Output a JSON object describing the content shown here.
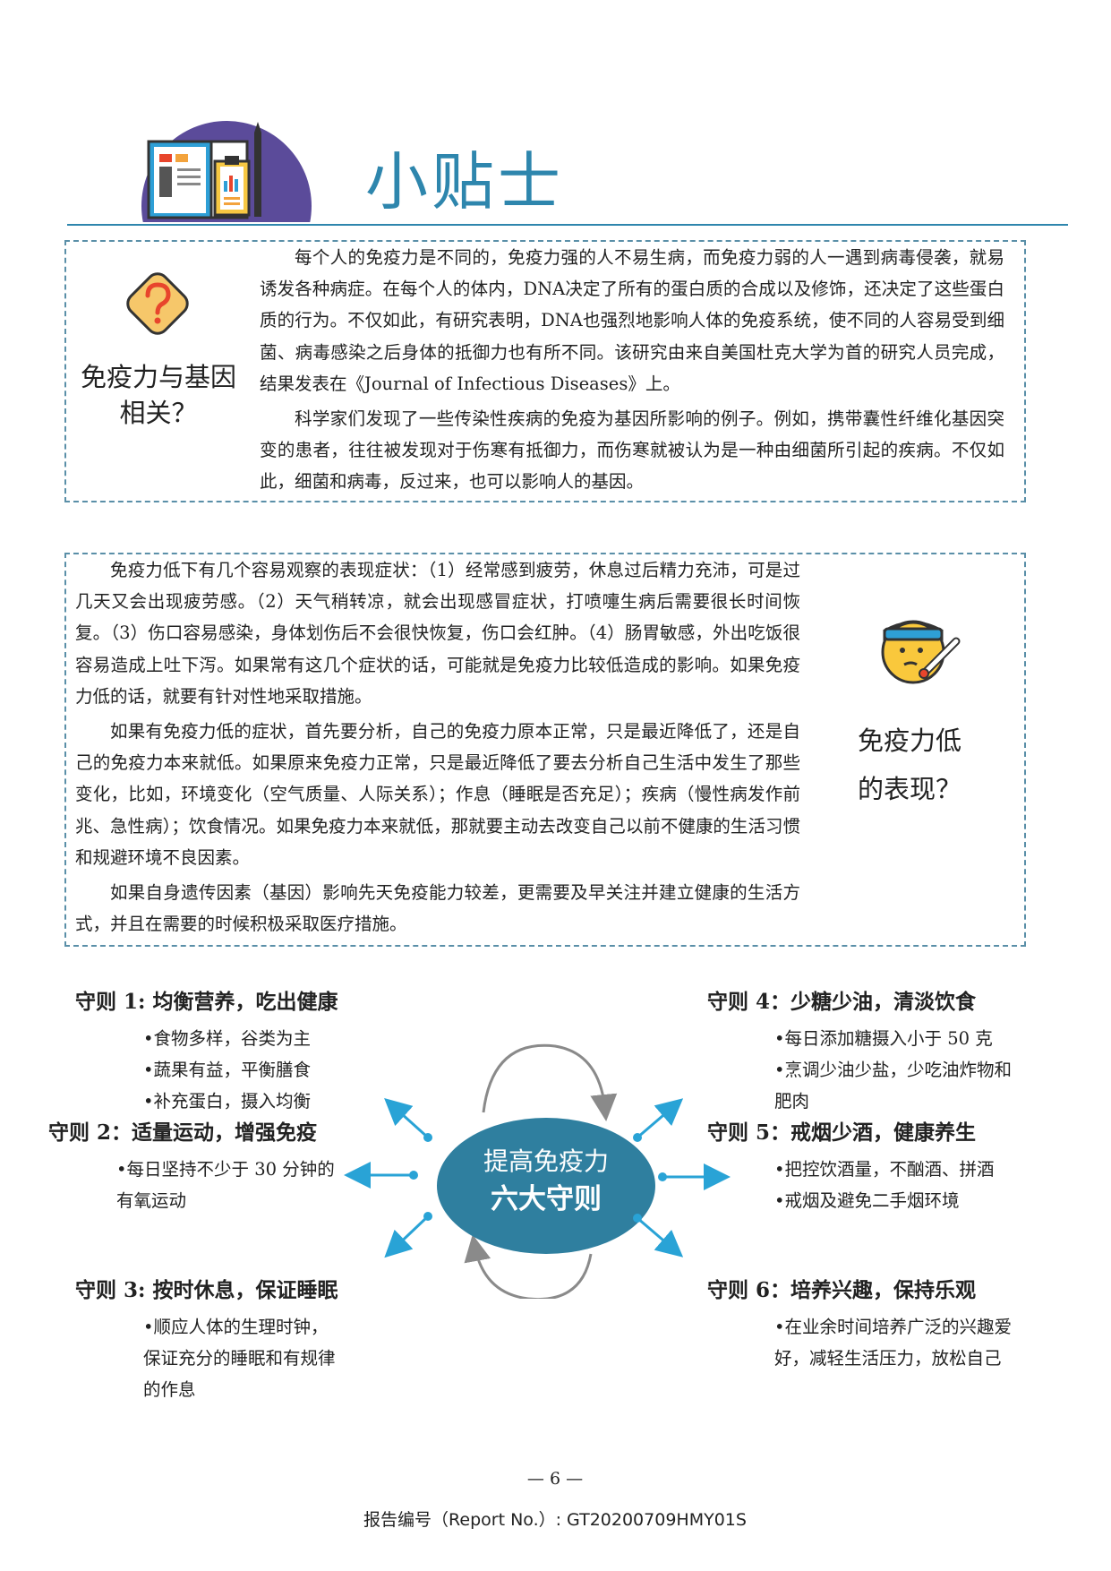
{
  "header": {
    "title": "小贴士"
  },
  "box1": {
    "side_title": "免疫力与基因相关？",
    "paragraphs": [
      "每个人的免疫力是不同的，免疫力强的人不易生病，而免疫力弱的人一遇到病毒侵袭，就易诱发各种病症。在每个人的体内，DNA决定了所有的蛋白质的合成以及修饰，还决定了这些蛋白质的行为。不仅如此，有研究表明，DNA也强烈地影响人体的免疫系统，使不同的人容易受到细菌、病毒感染之后身体的抵御力也有所不同。该研究由来自美国杜克大学为首的研究人员完成，结果发表在《Journal of Infectious Diseases》上。",
      "科学家们发现了一些传染性疾病的免疫为基因所影响的例子。例如，携带囊性纤维化基因突变的患者，往往被发现对于伤寒有抵御力，而伤寒就被认为是一种由细菌所引起的疾病。不仅如此，细菌和病毒，反过来，也可以影响人的基因。"
    ]
  },
  "box2": {
    "side_title_line1": "免疫力低",
    "side_title_line2": "的表现？",
    "paragraphs": [
      "免疫力低下有几个容易观察的表现症状：（1）经常感到疲劳，休息过后精力充沛，可是过几天又会出现疲劳感。（2）天气稍转凉，就会出现感冒症状，打喷嚏生病后需要很长时间恢复。（3）伤口容易感染，身体划伤后不会很快恢复，伤口会红肿。（4）肠胃敏感，外出吃饭很容易造成上吐下泻。如果常有这几个症状的话，可能就是免疫力比较低造成的影响。如果免疫力低的话，就要有针对性地采取措施。",
      "如果有免疫力低的症状，首先要分析，自己的免疫力原本正常，只是最近降低了，还是自己的免疫力本来就低。如果原来免疫力正常，只是最近降低了要去分析自己生活中发生了那些变化，比如，环境变化（空气质量、人际关系）；作息（睡眠是否充足）；疾病（慢性病发作前兆、急性病）；饮食情况。如果免疫力本来就低，那就要主动去改变自己以前不健康的生活习惯和规避环境不良因素。",
      "如果自身遗传因素（基因）影响先天免疫能力较差，更需要及早关注并建立健康的生活方式，并且在需要的时候积极采取医疗措施。"
    ]
  },
  "center": {
    "line1": "提高免疫力",
    "line2": "六大守则"
  },
  "rules": {
    "r1": {
      "title": "守则 1: 均衡营养，吃出健康",
      "items": [
        "•食物多样，谷类为主",
        "•蔬果有益，平衡膳食",
        "•补充蛋白，摄入均衡"
      ]
    },
    "r2": {
      "title": "守则 2：适量运动，增强免疫",
      "items": [
        "•每日坚持不少于 30 分钟的有氧运动"
      ]
    },
    "r3": {
      "title": "守则 3: 按时休息，保证睡眠",
      "items": [
        "•顺应人体的生理时钟，保证充分的睡眠和有规律的作息"
      ]
    },
    "r4": {
      "title": "守则 4：少糖少油，清淡饮食",
      "items": [
        "•每日添加糖摄入小于 50 克",
        "•烹调少油少盐，少吃油炸物和肥肉"
      ]
    },
    "r5": {
      "title": "守则 5：戒烟少酒，健康养生",
      "items": [
        "•把控饮酒量，不酗酒、拼酒",
        "•戒烟及避免二手烟环境"
      ]
    },
    "r6": {
      "title": "守则 6：培养兴趣，保持乐观",
      "items": [
        "•在业余时间培养广泛的兴趣爱好，减轻生活压力，放松自己"
      ]
    }
  },
  "footer": {
    "page_number": "— 6 —",
    "report_no": "报告编号（Report No.）: GT20200709HMY01S"
  },
  "colors": {
    "accent": "#2e86ad",
    "center_fill": "#2f7f9f",
    "arrow": "#29a3d6"
  }
}
